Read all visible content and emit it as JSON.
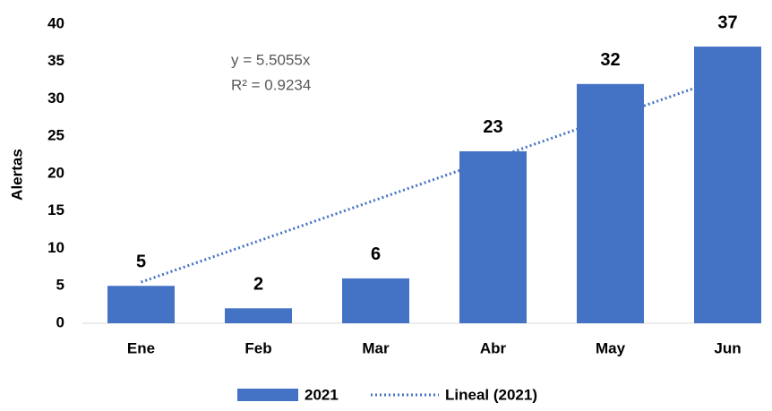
{
  "chart_data": {
    "type": "bar",
    "y_label": "Alertas",
    "annotations": [
      "y = 5.5055x",
      "R² = 0.9234"
    ],
    "categories": [
      "Ene",
      "Feb",
      "Mar",
      "Abr",
      "May",
      "Jun"
    ],
    "series": [
      {
        "name": "2021",
        "color": "#4472c4",
        "values": [
          5,
          2,
          6,
          23,
          32,
          37
        ]
      },
      {
        "name": "Lineal (2021)",
        "color": "#4472c4",
        "type": "line",
        "dotted": true,
        "values": [
          5.5,
          11.0,
          16.5,
          22.0,
          27.5,
          33.0
        ]
      }
    ],
    "ylim": [
      0,
      40
    ],
    "yticks": [
      0,
      5,
      10,
      15,
      20,
      25,
      30,
      35,
      40
    ],
    "legend": "bottom"
  }
}
